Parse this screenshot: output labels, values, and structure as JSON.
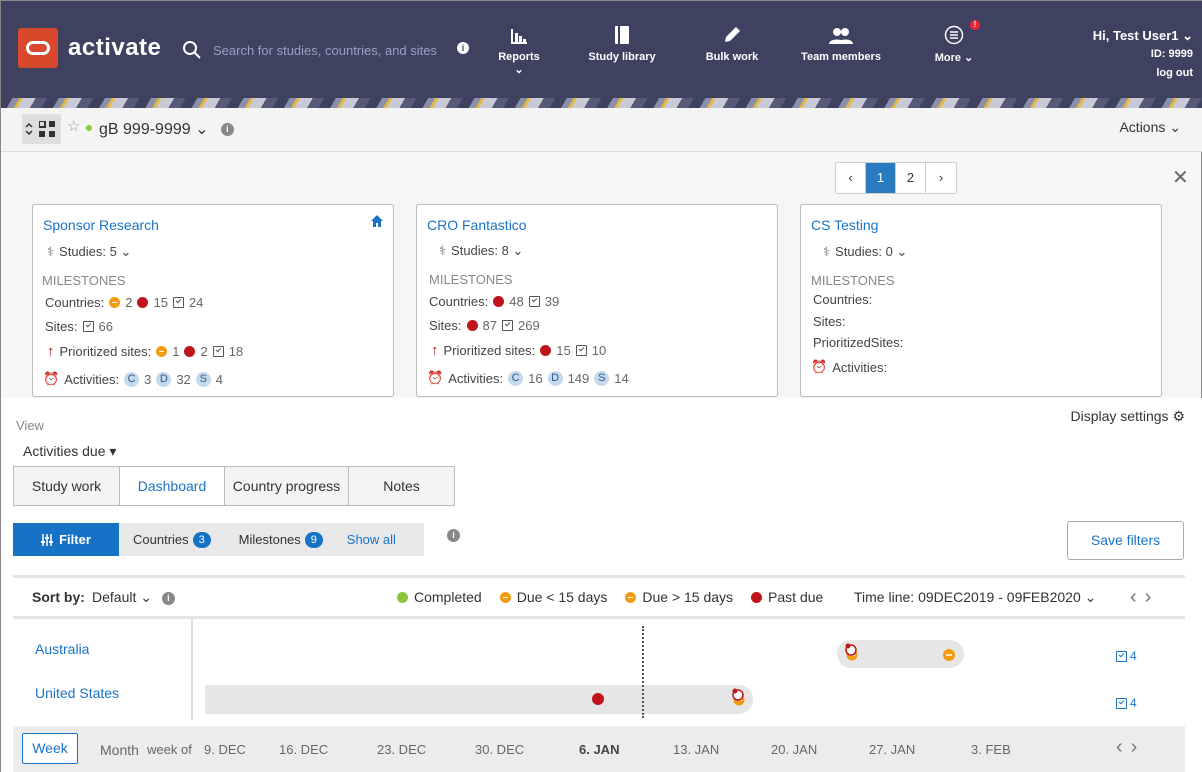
{
  "header": {
    "brand": "activate",
    "search_placeholder": "Search for studies, countries, and sites",
    "nav": [
      {
        "label": "Reports ⌄"
      },
      {
        "label": "Study library"
      },
      {
        "label": "Bulk work"
      },
      {
        "label": "Team members"
      },
      {
        "label": "More ⌄",
        "badge": "!"
      }
    ],
    "user": {
      "greeting": "Hi, Test User1 ⌄",
      "id": "ID: 9999",
      "logout": "log out"
    }
  },
  "studybar": {
    "study_id": "gB 999-9999 ⌄",
    "actions": "Actions ⌄"
  },
  "pager": {
    "prev": "‹",
    "pages": [
      "1",
      "2"
    ],
    "next": "›",
    "close": "✕"
  },
  "cards": [
    {
      "name": "Sponsor Research",
      "studies": "Studies: 5 ⌄",
      "milestones_label": "MILESTONES",
      "countries_label": "Countries:",
      "countries": [
        "2",
        "15",
        "24"
      ],
      "sites_label": "Sites:",
      "sites": [
        "66"
      ],
      "prioritized_label": "Prioritized sites:",
      "prioritized": [
        "1",
        "2",
        "18"
      ],
      "activities_label": "Activities:",
      "activities": [
        "3",
        "32",
        "4"
      ]
    },
    {
      "name": "CRO Fantastico",
      "studies": "Studies: 8 ⌄",
      "milestones_label": "MILESTONES",
      "countries_label": "Countries:",
      "countries": [
        "48",
        "39"
      ],
      "sites_label": "Sites:",
      "sites": [
        "87",
        "269"
      ],
      "prioritized_label": "Prioritized sites:",
      "prioritized": [
        "15",
        "10"
      ],
      "activities_label": "Activities:",
      "activities": [
        "16",
        "149",
        "14"
      ]
    },
    {
      "name": "CS Testing",
      "studies": "Studies: 0 ⌄",
      "milestones_label": "MILESTONES",
      "countries_label": "Countries:",
      "sites_label": "Sites:",
      "prioritized_label": "PrioritizedSites:",
      "activities_label": "Activities:"
    }
  ],
  "activity_letters": [
    "C",
    "D",
    "S"
  ],
  "view": {
    "label": "View",
    "selected": "Activities due ▾",
    "display_settings": "Display settings"
  },
  "tabs": [
    "Study work",
    "Dashboard",
    "Country progress",
    "Notes"
  ],
  "filter": {
    "button": "Filter",
    "countries_label": "Countries",
    "countries_count": "3",
    "milestones_label": "Milestones",
    "milestones_count": "9",
    "show_all": "Show all",
    "save": "Save filters"
  },
  "sort": {
    "label": "Sort by:",
    "value": "Default ⌄"
  },
  "legend": [
    {
      "label": "Completed",
      "color": "#8cc63f"
    },
    {
      "label": "Due < 15 days",
      "color": "#f39c12"
    },
    {
      "label": "Due > 15 days",
      "color": "#f39c12"
    },
    {
      "label": "Past due",
      "color": "#c0141c"
    }
  ],
  "timeline": {
    "label": "Time line:",
    "value": "09DEC2019 - 09FEB2020 ⌄"
  },
  "gantt": [
    {
      "country": "Australia",
      "count": "4"
    },
    {
      "country": "United States",
      "count": "4"
    }
  ],
  "bottom": {
    "week": "Week",
    "month": "Month",
    "week_of": "week of",
    "weeks": [
      "9. DEC",
      "16. DEC",
      "23. DEC",
      "30. DEC",
      "6. JAN",
      "13. JAN",
      "20. JAN",
      "27. JAN",
      "3. FEB"
    ],
    "current_week": "6. JAN"
  }
}
